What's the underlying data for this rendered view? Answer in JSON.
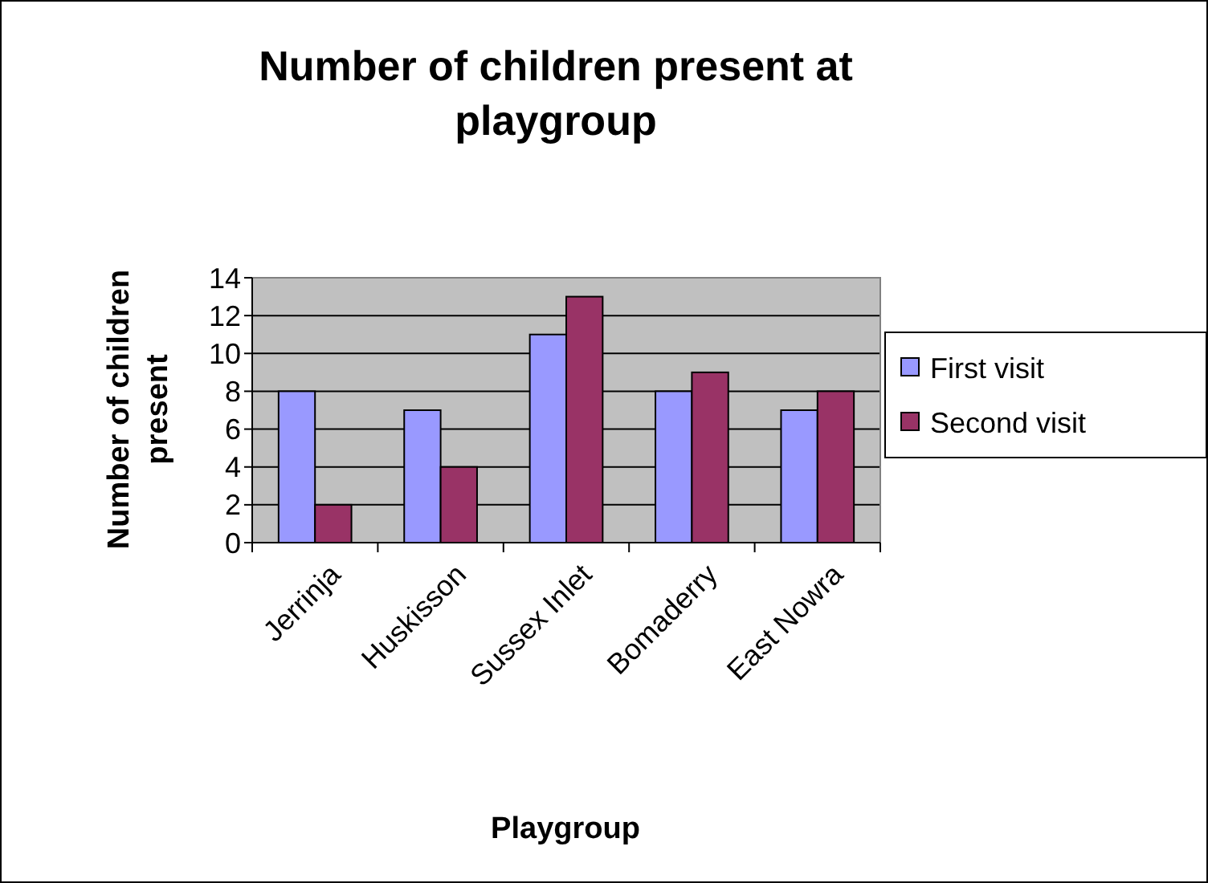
{
  "chart_data": {
    "type": "bar",
    "title": "Number of children present at playgroup",
    "xlabel": "Playgroup",
    "ylabel": "Number of children present",
    "categories": [
      "Jerrinja",
      "Huskisson",
      "Sussex Inlet",
      "Bomaderry",
      "East Nowra"
    ],
    "series": [
      {
        "name": "First visit",
        "color": "#9999ff",
        "values": [
          8,
          7,
          11,
          8,
          7
        ]
      },
      {
        "name": "Second visit",
        "color": "#993366",
        "values": [
          2,
          4,
          13,
          9,
          8
        ]
      }
    ],
    "ylim": [
      0,
      14
    ],
    "yticks": [
      0,
      2,
      4,
      6,
      8,
      10,
      12,
      14
    ],
    "grid": "y",
    "legend": "right"
  }
}
